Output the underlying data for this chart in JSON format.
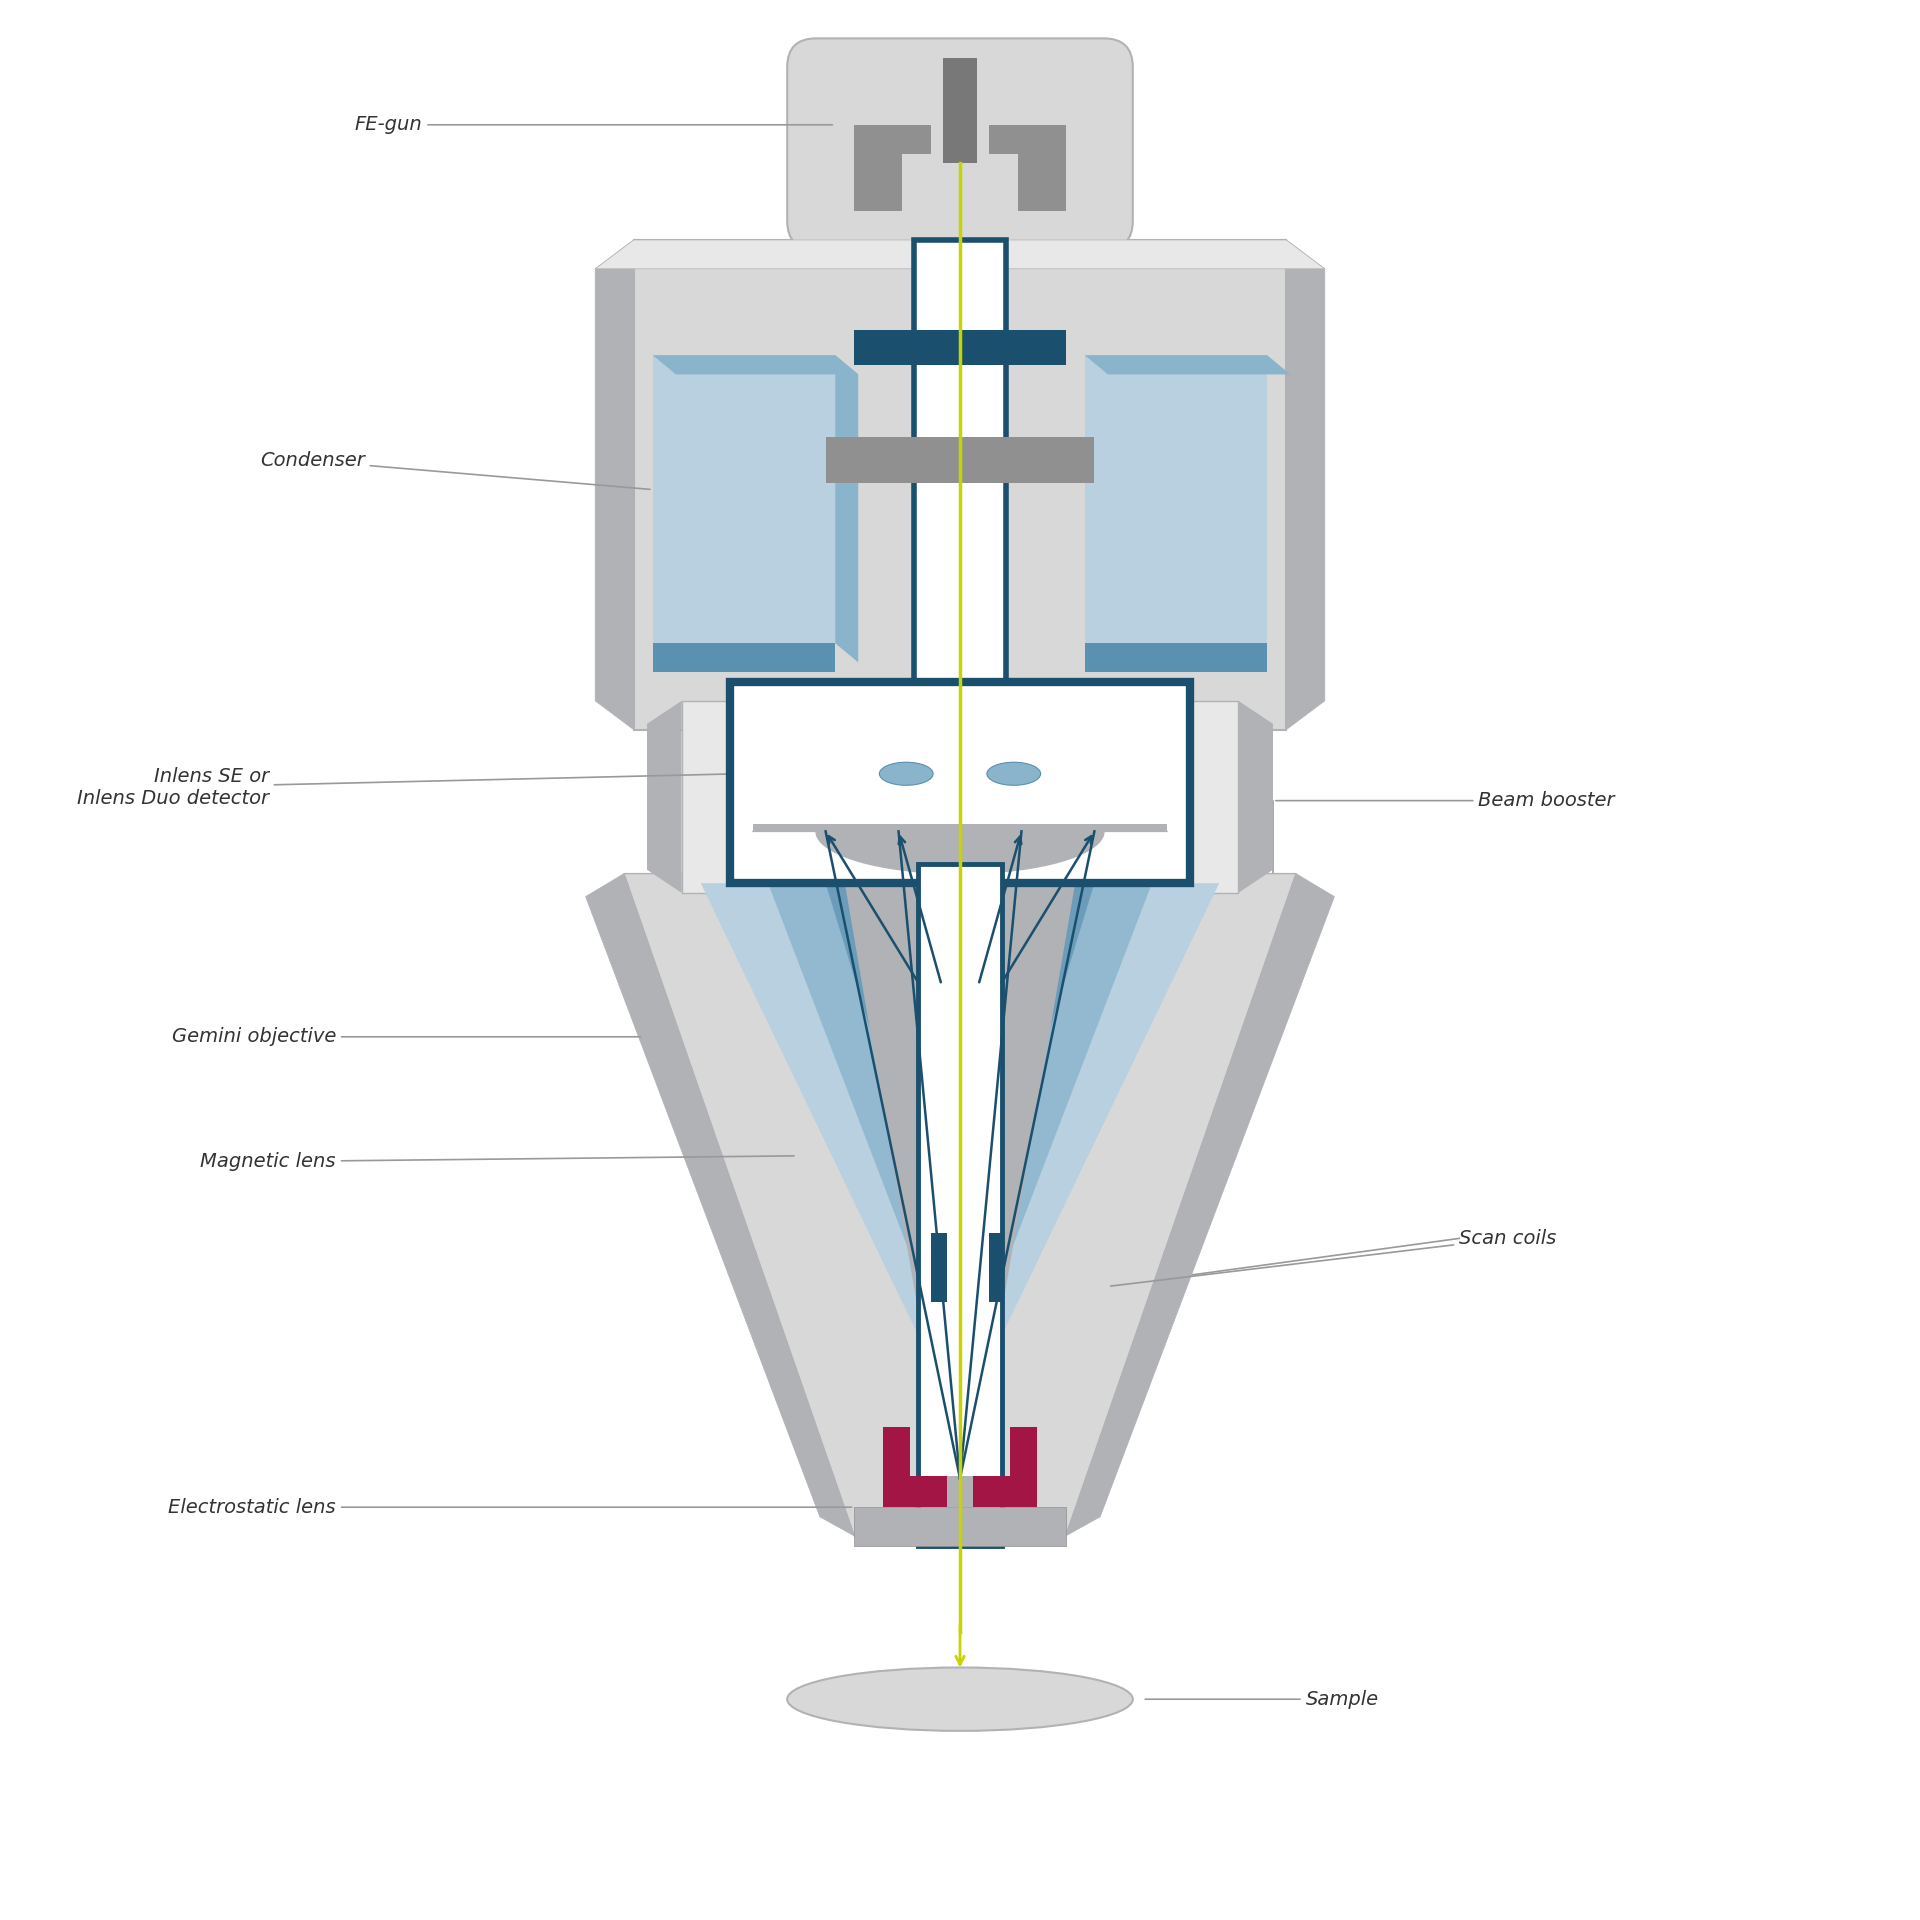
{
  "bg_color": "#ffffff",
  "colors": {
    "light_gray": "#d8d8d8",
    "light_gray2": "#e8e8e8",
    "mid_gray": "#b0b2b5",
    "dark_gray": "#909090",
    "darker_gray": "#787878",
    "teal_dark": "#1a4f6e",
    "blue_light": "#b8d0e0",
    "blue_med": "#8ab4cc",
    "blue_dark": "#5a90b0",
    "yellow_green": "#c8d400",
    "crimson": "#a31545",
    "white": "#ffffff",
    "outline_gray": "#a0a0a0",
    "label_line": "#999999",
    "label_text": "#333333"
  },
  "labels": {
    "fe_gun": "FE-gun",
    "condenser": "Condenser",
    "inlens": "Inlens SE or\nInlens Duo detector",
    "beam_booster": "Beam booster",
    "gemini_obj": "Gemini objective",
    "magnetic_lens": "Magnetic lens",
    "electrostatic_lens": "Electrostatic lens",
    "scan_coils": "Scan coils",
    "sample": "Sample"
  },
  "font_size": 14
}
